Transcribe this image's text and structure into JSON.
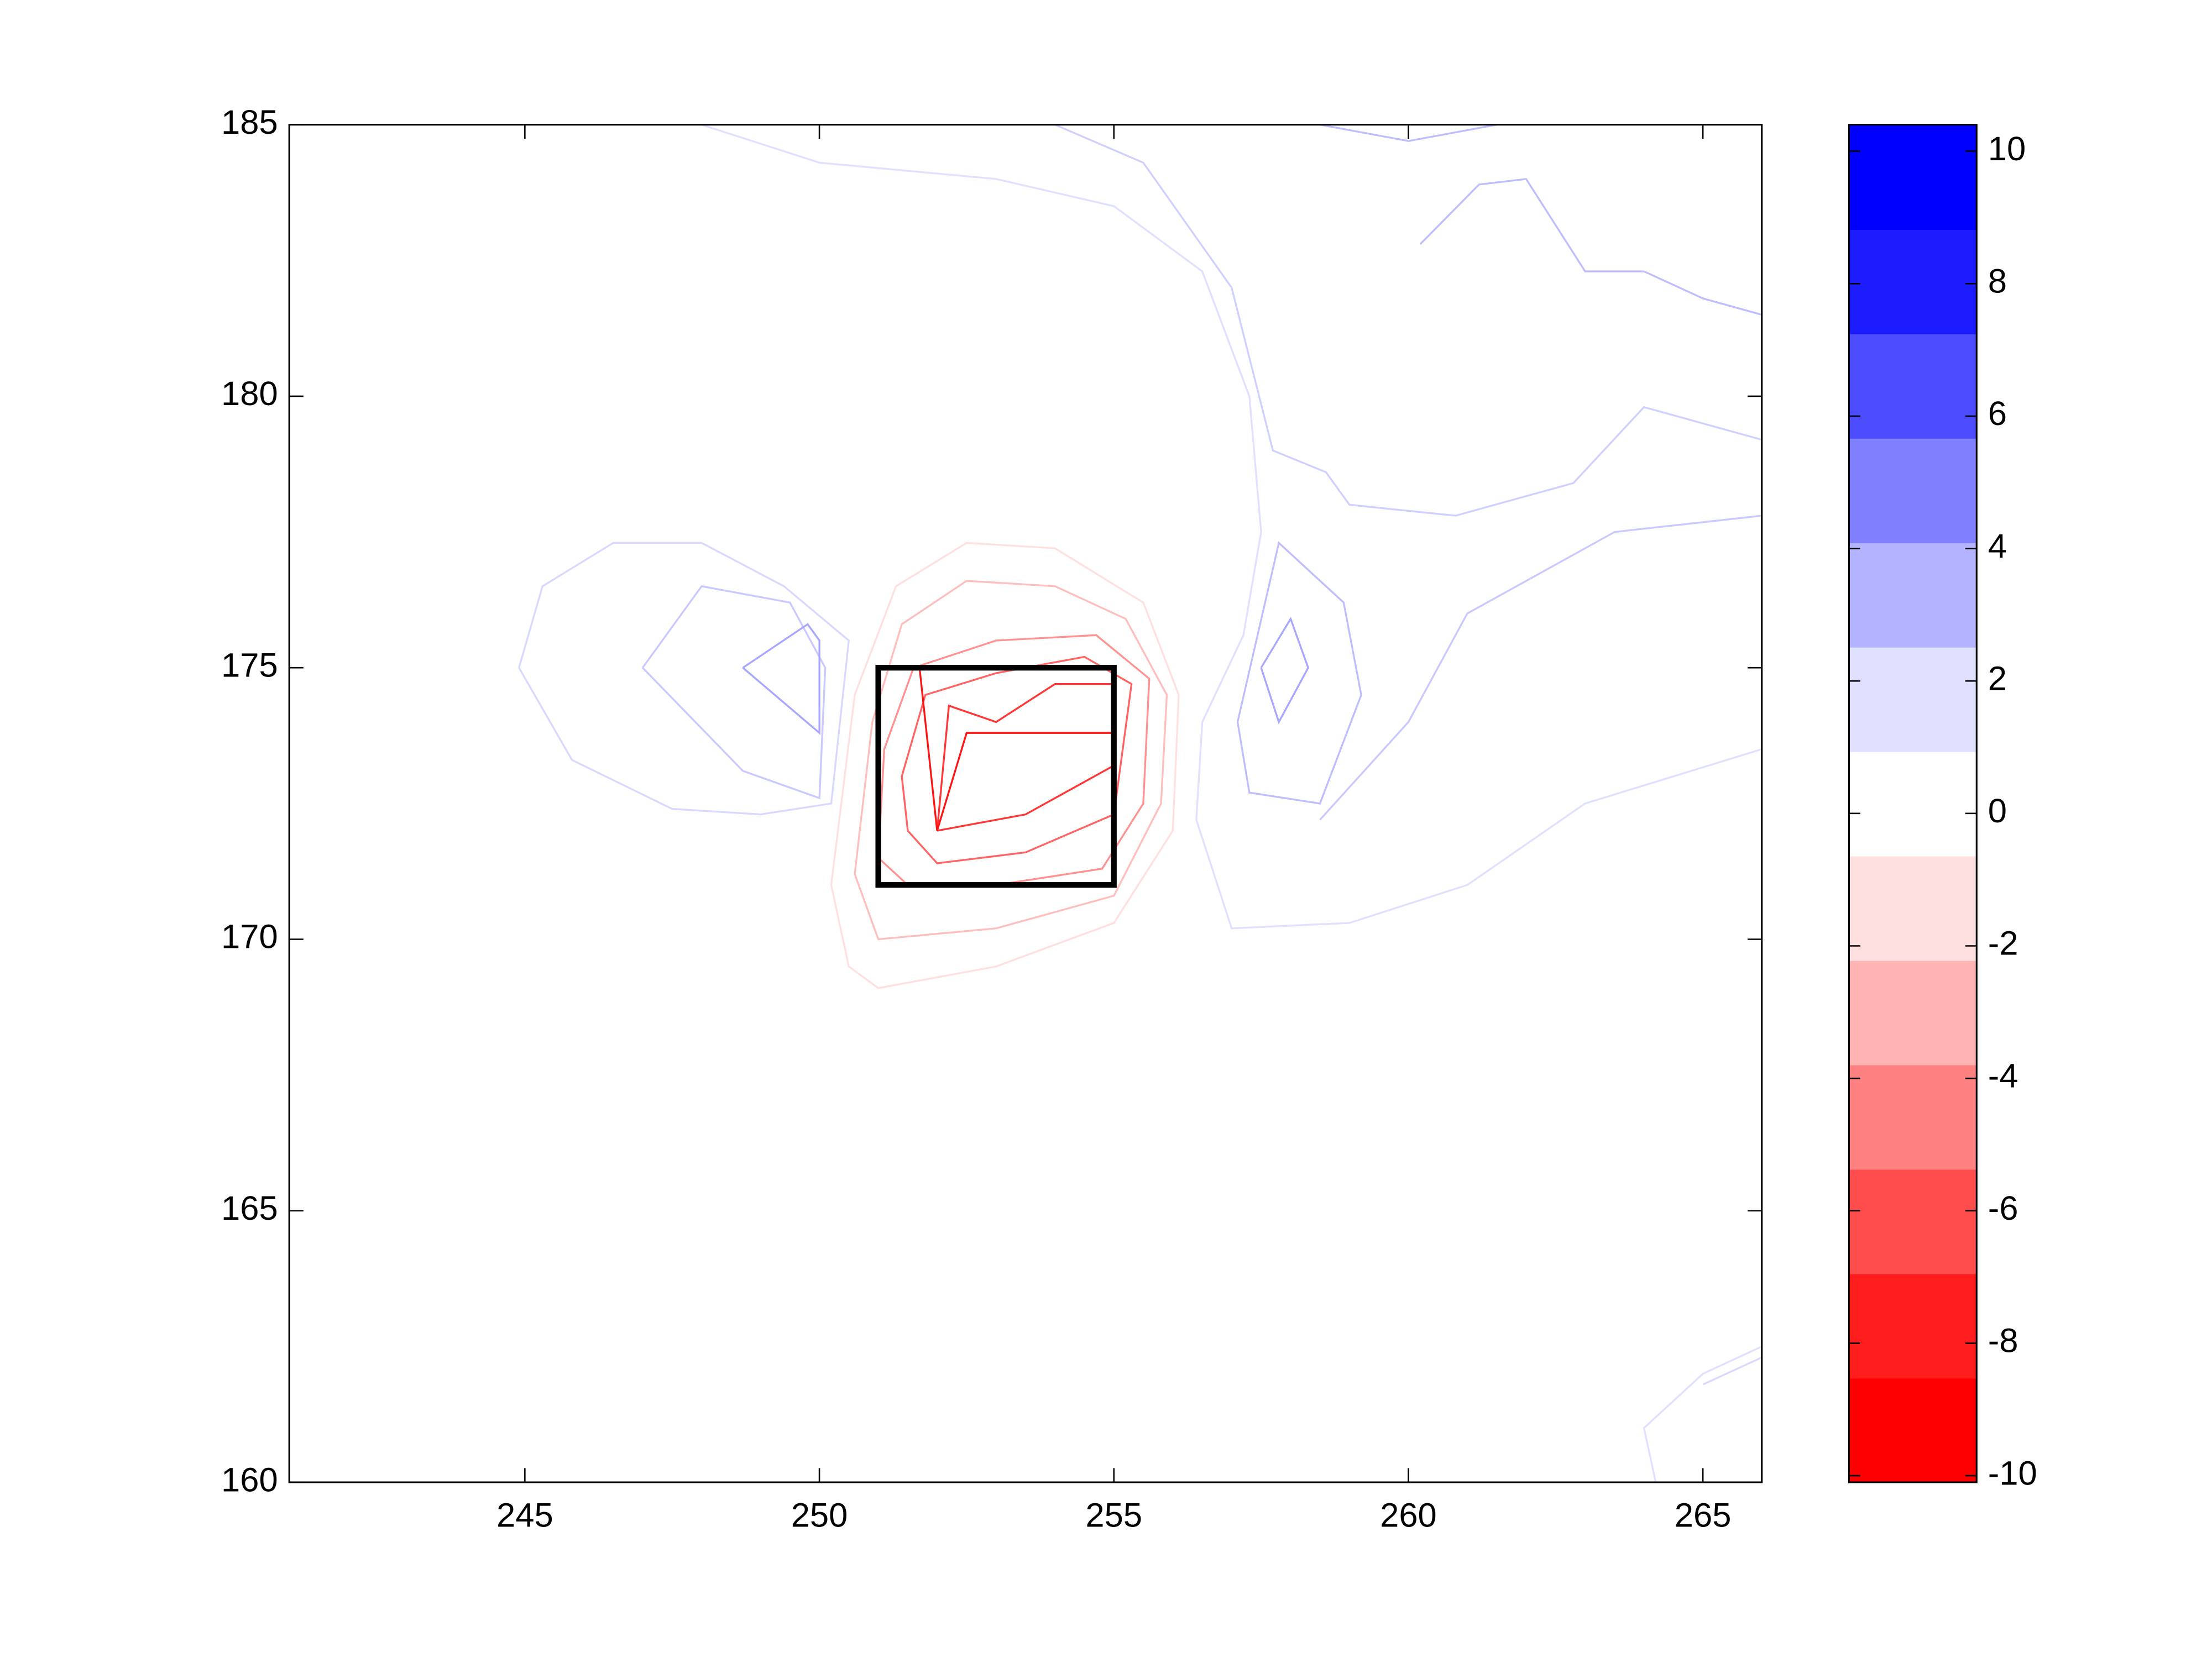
{
  "chart_data": {
    "type": "contour",
    "xlim": [
      241,
      266
    ],
    "ylim": [
      160,
      185
    ],
    "xticks": [
      245,
      250,
      255,
      260,
      265
    ],
    "yticks": [
      160,
      165,
      170,
      175,
      180,
      185
    ],
    "box": {
      "x": [
        251,
        255
      ],
      "y": [
        171,
        175
      ]
    },
    "colorbar": {
      "clim": [
        -10.1,
        10.4
      ],
      "ticks": [
        -10,
        -8,
        -6,
        -4,
        -2,
        0,
        2,
        4,
        6,
        8,
        10
      ],
      "colors": [
        "#ff0000",
        "#ff1c1c",
        "#ff4d4d",
        "#ff8080",
        "#ffb3b3",
        "#ffe0e0",
        "#ffffff",
        "#e0e0ff",
        "#b3b3ff",
        "#8080ff",
        "#4d4dff",
        "#1c1cff",
        "#0000ff"
      ]
    },
    "contours": [
      {
        "level": -0.5,
        "x": [
          250.2,
          250.5,
          251,
          253,
          255,
          256,
          256.1,
          255.5,
          254,
          252.5,
          251.3,
          250.6,
          250.2
        ],
        "y": [
          171,
          169.5,
          169.1,
          169.5,
          170.3,
          172,
          174.5,
          176.2,
          177.2,
          177.3,
          176.5,
          174.5,
          171
        ]
      },
      {
        "level": -2,
        "x": [
          250.6,
          251,
          253,
          255,
          255.8,
          255.9,
          255.2,
          254,
          252.5,
          251.4,
          250.9,
          250.6
        ],
        "y": [
          171.2,
          170,
          170.2,
          170.8,
          172.5,
          174.5,
          175.9,
          176.5,
          176.6,
          175.8,
          174,
          171.2
        ]
      },
      {
        "level": -4,
        "x": [
          251,
          251.5,
          253,
          254.8,
          255.5,
          255.6,
          254.7,
          253,
          251.6,
          251.1,
          251
        ],
        "y": [
          171.5,
          171,
          171,
          171.3,
          172.5,
          174.8,
          175.6,
          175.5,
          175,
          173.5,
          171.5
        ]
      },
      {
        "level": -6,
        "x": [
          251.5,
          252,
          253.5,
          255,
          255.3,
          254.5,
          253,
          251.8,
          251.4,
          251.5
        ],
        "y": [
          172,
          171.4,
          171.6,
          172.3,
          174.7,
          175.2,
          174.9,
          174.5,
          173,
          172
        ]
      },
      {
        "level": -8,
        "x": [
          252,
          253.5,
          255,
          255,
          254,
          253,
          252.2,
          252
        ],
        "y": [
          172,
          172.3,
          173.2,
          174.7,
          174.7,
          174,
          174.3,
          172
        ]
      },
      {
        "level": -9.5,
        "x": [
          251.7,
          252,
          252.5,
          255
        ],
        "y": [
          175,
          172,
          173.8,
          173.8
        ]
      },
      {
        "level": 0.8,
        "x": [
          244.9,
          245.3,
          246.5,
          248,
          249.4,
          250.5,
          250.2,
          249,
          247.5,
          245.8,
          244.9
        ],
        "y": [
          175,
          176.5,
          177.3,
          177.3,
          176.5,
          175.5,
          172.5,
          172.3,
          172.4,
          173.3,
          175
        ]
      },
      {
        "level": 1.5,
        "x": [
          247,
          248,
          249.5,
          250.1,
          250,
          248.7,
          247
        ],
        "y": [
          175,
          176.5,
          176.2,
          175,
          172.6,
          173.1,
          175
        ]
      },
      {
        "level": 3,
        "x": [
          248.7,
          249.8,
          250,
          250,
          248.7
        ],
        "y": [
          175,
          175.8,
          175.5,
          173.8,
          175
        ]
      },
      {
        "level": 2,
        "x": [
          257.1,
          257.8,
          258.9,
          259.2,
          258.5,
          257.3,
          257.1
        ],
        "y": [
          174,
          177.3,
          176.2,
          174.5,
          172.5,
          172.7,
          174
        ]
      },
      {
        "level": 3,
        "x": [
          257.5,
          258,
          258.3,
          257.8,
          257.5
        ],
        "y": [
          175,
          175.9,
          175,
          174,
          175
        ]
      },
      {
        "level": 1.5,
        "x": [
          258.5,
          260,
          261,
          263.5,
          266
        ],
        "y": [
          172.2,
          174,
          176,
          177.5,
          177.8
        ]
      },
      {
        "level": 2,
        "x": [
          260.2,
          261.2,
          262,
          263,
          264,
          265,
          266
        ],
        "y": [
          182.8,
          183.9,
          184,
          182.3,
          182.3,
          181.8,
          181.5
        ]
      },
      {
        "level": 2,
        "x": [
          258.5,
          260,
          261.5
        ],
        "y": [
          185,
          184.7,
          185
        ]
      },
      {
        "level": 0.5,
        "x": [
          248,
          250,
          253,
          255,
          256.5,
          257.3,
          257.5,
          257.2,
          256.5,
          256.4,
          257,
          259,
          261,
          263,
          266
        ],
        "y": [
          185,
          184.3,
          184,
          183.5,
          182.3,
          180,
          177.5,
          175.6,
          174,
          172.2,
          170.2,
          170.3,
          171,
          172.5,
          173.5
        ]
      },
      {
        "level": 1.2,
        "x": [
          254,
          255.5,
          257,
          257.7,
          258.6,
          259,
          260.8,
          262.8,
          264,
          266
        ],
        "y": [
          185,
          184.3,
          182,
          179,
          178.6,
          178,
          177.8,
          178.4,
          179.8,
          179.2
        ]
      },
      {
        "level": 0.5,
        "x": [
          264.2,
          264,
          265,
          266
        ],
        "y": [
          160,
          161,
          162,
          162.5
        ]
      },
      {
        "level": 0.8,
        "x": [
          265,
          266
        ],
        "y": [
          161.8,
          162.3
        ]
      }
    ]
  }
}
